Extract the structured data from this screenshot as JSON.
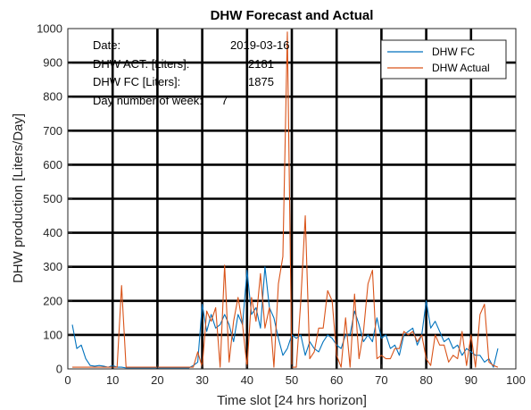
{
  "chart_data": {
    "type": "line",
    "title": "DHW Forecast and Actual",
    "xlabel": "Time slot [24 hrs horizon]",
    "ylabel": "DHW production [Liters/Day]",
    "xlim": [
      0,
      100
    ],
    "ylim": [
      0,
      1000
    ],
    "xticks": [
      0,
      10,
      20,
      30,
      40,
      50,
      60,
      70,
      80,
      90,
      100
    ],
    "yticks": [
      0,
      100,
      200,
      300,
      400,
      500,
      600,
      700,
      800,
      900,
      1000
    ],
    "grid": true,
    "legend_position": "top-right",
    "annotations": [
      {
        "label": "Date:",
        "value": "2019-03-16"
      },
      {
        "label": "DHW ACT. [Liters]:",
        "value": "2181"
      },
      {
        "label": "DHW FC [Liters]:",
        "value": "1875"
      },
      {
        "label": "Day number of week:",
        "value": "7"
      }
    ],
    "series": [
      {
        "name": "DHW FC",
        "color": "#0072BD",
        "x": [
          1,
          2,
          3,
          4,
          5,
          6,
          7,
          8,
          9,
          10,
          11,
          12,
          13,
          14,
          15,
          16,
          17,
          18,
          19,
          20,
          21,
          22,
          23,
          24,
          25,
          26,
          27,
          28,
          29,
          30,
          31,
          32,
          33,
          34,
          35,
          36,
          37,
          38,
          39,
          40,
          41,
          42,
          43,
          44,
          45,
          46,
          47,
          48,
          49,
          50,
          51,
          52,
          53,
          54,
          55,
          56,
          57,
          58,
          59,
          60,
          61,
          62,
          63,
          64,
          65,
          66,
          67,
          68,
          69,
          70,
          71,
          72,
          73,
          74,
          75,
          76,
          77,
          78,
          79,
          80,
          81,
          82,
          83,
          84,
          85,
          86,
          87,
          88,
          89,
          90,
          91,
          92,
          93,
          94,
          95,
          96
        ],
        "y": [
          130,
          60,
          70,
          30,
          10,
          8,
          10,
          8,
          5,
          10,
          5,
          5,
          3,
          3,
          3,
          3,
          3,
          3,
          3,
          3,
          3,
          3,
          3,
          3,
          3,
          3,
          3,
          10,
          20,
          190,
          110,
          160,
          120,
          130,
          160,
          130,
          80,
          160,
          130,
          290,
          160,
          180,
          120,
          300,
          180,
          150,
          90,
          40,
          60,
          100,
          90,
          100,
          40,
          80,
          60,
          50,
          80,
          100,
          90,
          70,
          60,
          100,
          100,
          170,
          130,
          80,
          100,
          80,
          150,
          90,
          100,
          60,
          70,
          40,
          100,
          110,
          120,
          70,
          100,
          200,
          120,
          140,
          110,
          80,
          90,
          60,
          70,
          40,
          60,
          50,
          40,
          40,
          20,
          30,
          5,
          60
        ]
      },
      {
        "name": "DHW Actual",
        "color": "#D95319",
        "x": [
          1,
          2,
          3,
          4,
          5,
          6,
          7,
          8,
          9,
          10,
          11,
          12,
          13,
          14,
          15,
          16,
          17,
          18,
          19,
          20,
          21,
          22,
          23,
          24,
          25,
          26,
          27,
          28,
          29,
          30,
          31,
          32,
          33,
          34,
          35,
          36,
          37,
          38,
          39,
          40,
          41,
          42,
          43,
          44,
          45,
          46,
          47,
          48,
          49,
          50,
          51,
          52,
          53,
          54,
          55,
          56,
          57,
          58,
          59,
          60,
          61,
          62,
          63,
          64,
          65,
          66,
          67,
          68,
          69,
          70,
          71,
          72,
          73,
          74,
          75,
          76,
          77,
          78,
          79,
          80,
          81,
          82,
          83,
          84,
          85,
          86,
          87,
          88,
          89,
          90,
          91,
          92,
          93,
          94,
          95,
          96
        ],
        "y": [
          5,
          5,
          5,
          5,
          5,
          5,
          5,
          5,
          5,
          5,
          5,
          245,
          5,
          5,
          5,
          5,
          5,
          5,
          5,
          5,
          5,
          5,
          5,
          5,
          5,
          5,
          5,
          5,
          50,
          5,
          170,
          140,
          180,
          5,
          305,
          20,
          140,
          210,
          130,
          5,
          210,
          140,
          280,
          120,
          180,
          5,
          250,
          330,
          990,
          5,
          5,
          200,
          450,
          30,
          50,
          120,
          120,
          230,
          200,
          40,
          5,
          150,
          5,
          220,
          30,
          110,
          250,
          290,
          30,
          40,
          30,
          30,
          60,
          60,
          110,
          100,
          110,
          80,
          100,
          30,
          10,
          100,
          70,
          70,
          20,
          40,
          30,
          110,
          10,
          100,
          5,
          160,
          190,
          20,
          10,
          5
        ]
      }
    ]
  }
}
